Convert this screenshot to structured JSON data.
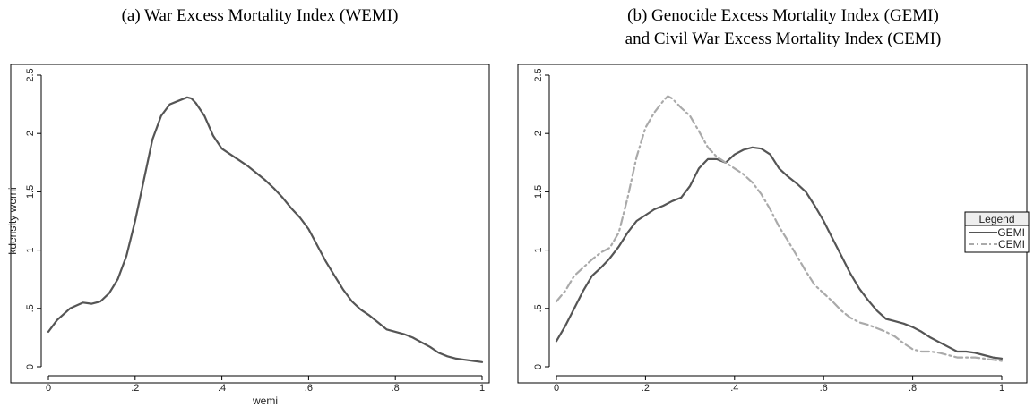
{
  "chart_data": [
    {
      "type": "line",
      "title": "(a)  War Excess Mortality Index (WEMI)",
      "title_lines": [
        "(a)  War Excess Mortality Index (WEMI)"
      ],
      "xlabel": "wemi",
      "ylabel": "kdensity wemi",
      "xlim": [
        0,
        1
      ],
      "ylim": [
        0,
        2.5
      ],
      "xticks": [
        0,
        0.2,
        0.4,
        0.6,
        0.8,
        1
      ],
      "xtick_labels": [
        "0",
        ".2",
        ".4",
        ".6",
        ".8",
        "1"
      ],
      "yticks": [
        0,
        0.5,
        1,
        1.5,
        2,
        2.5
      ],
      "ytick_labels": [
        "0",
        ".5",
        "1",
        "1.5",
        "2",
        "2.5"
      ],
      "grid": false,
      "series": [
        {
          "color": "#555555",
          "dash": "solid",
          "x": [
            0,
            0.02,
            0.05,
            0.08,
            0.1,
            0.12,
            0.14,
            0.16,
            0.18,
            0.2,
            0.22,
            0.24,
            0.26,
            0.28,
            0.3,
            0.32,
            0.33,
            0.34,
            0.36,
            0.38,
            0.4,
            0.42,
            0.44,
            0.46,
            0.48,
            0.5,
            0.52,
            0.54,
            0.56,
            0.58,
            0.6,
            0.62,
            0.64,
            0.66,
            0.68,
            0.7,
            0.72,
            0.74,
            0.76,
            0.78,
            0.8,
            0.82,
            0.84,
            0.86,
            0.88,
            0.9,
            0.92,
            0.94,
            0.96,
            0.98,
            1.0
          ],
          "y": [
            0.3,
            0.4,
            0.5,
            0.55,
            0.54,
            0.56,
            0.63,
            0.75,
            0.95,
            1.25,
            1.6,
            1.95,
            2.15,
            2.25,
            2.28,
            2.31,
            2.3,
            2.26,
            2.15,
            1.98,
            1.87,
            1.82,
            1.77,
            1.72,
            1.66,
            1.6,
            1.53,
            1.45,
            1.36,
            1.28,
            1.18,
            1.04,
            0.9,
            0.78,
            0.66,
            0.56,
            0.49,
            0.44,
            0.38,
            0.32,
            0.3,
            0.28,
            0.25,
            0.21,
            0.17,
            0.12,
            0.09,
            0.07,
            0.06,
            0.05,
            0.04
          ]
        }
      ]
    },
    {
      "type": "line",
      "title": "(b)  Genocide Excess Mortality Index (GEMI)\nand Civil War Excess Mortality Index (CEMI)",
      "title_lines": [
        "(b)  Genocide Excess Mortality Index (GEMI)",
        "and Civil War Excess Mortality Index (CEMI)"
      ],
      "xlabel": "",
      "ylabel": "",
      "xlim": [
        0,
        1
      ],
      "ylim": [
        0,
        2.5
      ],
      "xticks": [
        0,
        0.2,
        0.4,
        0.6,
        0.8,
        1
      ],
      "xtick_labels": [
        "0",
        ".2",
        ".4",
        ".6",
        ".8",
        "1"
      ],
      "yticks": [
        0,
        0.5,
        1,
        1.5,
        2,
        2.5
      ],
      "ytick_labels": [
        "0",
        ".5",
        "1",
        "1.5",
        "2",
        "2.5"
      ],
      "grid": false,
      "legend": {
        "title": "Legend",
        "position": "right"
      },
      "series": [
        {
          "name": "GEMI",
          "color": "#555555",
          "dash": "solid",
          "x": [
            0,
            0.02,
            0.04,
            0.06,
            0.08,
            0.1,
            0.12,
            0.14,
            0.16,
            0.18,
            0.2,
            0.22,
            0.24,
            0.26,
            0.28,
            0.3,
            0.32,
            0.34,
            0.36,
            0.38,
            0.4,
            0.42,
            0.44,
            0.46,
            0.48,
            0.5,
            0.52,
            0.54,
            0.56,
            0.58,
            0.6,
            0.62,
            0.64,
            0.66,
            0.68,
            0.7,
            0.72,
            0.74,
            0.76,
            0.78,
            0.8,
            0.82,
            0.84,
            0.86,
            0.88,
            0.9,
            0.92,
            0.94,
            0.96,
            0.98,
            1.0
          ],
          "y": [
            0.22,
            0.35,
            0.5,
            0.65,
            0.78,
            0.85,
            0.93,
            1.03,
            1.15,
            1.25,
            1.3,
            1.35,
            1.38,
            1.42,
            1.45,
            1.55,
            1.7,
            1.78,
            1.78,
            1.75,
            1.82,
            1.86,
            1.88,
            1.87,
            1.82,
            1.7,
            1.63,
            1.57,
            1.5,
            1.38,
            1.25,
            1.1,
            0.95,
            0.8,
            0.67,
            0.57,
            0.48,
            0.41,
            0.39,
            0.37,
            0.34,
            0.3,
            0.25,
            0.21,
            0.17,
            0.13,
            0.13,
            0.12,
            0.1,
            0.08,
            0.07
          ]
        },
        {
          "name": "CEMI",
          "color": "#aaaaaa",
          "dash": "dashdot",
          "x": [
            0,
            0.02,
            0.04,
            0.06,
            0.08,
            0.1,
            0.12,
            0.14,
            0.16,
            0.18,
            0.2,
            0.22,
            0.24,
            0.25,
            0.26,
            0.28,
            0.3,
            0.32,
            0.34,
            0.36,
            0.38,
            0.4,
            0.42,
            0.44,
            0.46,
            0.48,
            0.5,
            0.52,
            0.54,
            0.56,
            0.58,
            0.6,
            0.62,
            0.64,
            0.66,
            0.68,
            0.7,
            0.72,
            0.74,
            0.76,
            0.78,
            0.8,
            0.82,
            0.84,
            0.86,
            0.88,
            0.9,
            0.92,
            0.94,
            0.96,
            0.98,
            1.0
          ],
          "y": [
            0.56,
            0.65,
            0.78,
            0.85,
            0.92,
            0.98,
            1.02,
            1.15,
            1.45,
            1.8,
            2.05,
            2.18,
            2.28,
            2.32,
            2.3,
            2.22,
            2.15,
            2.02,
            1.88,
            1.8,
            1.75,
            1.7,
            1.65,
            1.58,
            1.48,
            1.35,
            1.2,
            1.08,
            0.95,
            0.82,
            0.7,
            0.63,
            0.56,
            0.48,
            0.42,
            0.38,
            0.36,
            0.33,
            0.3,
            0.26,
            0.2,
            0.15,
            0.13,
            0.13,
            0.12,
            0.1,
            0.08,
            0.08,
            0.08,
            0.07,
            0.06,
            0.05
          ]
        }
      ]
    }
  ]
}
